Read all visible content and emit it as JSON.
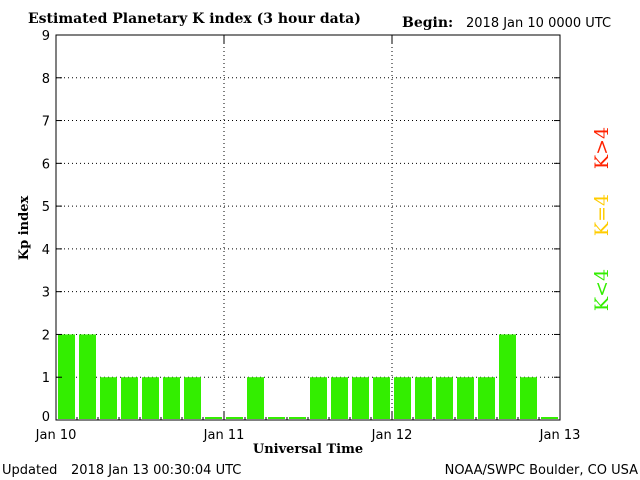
{
  "header": {
    "title": "Estimated Planetary K index (3 hour data)",
    "begin_label": "Begin:",
    "begin_value": "2018 Jan 10 0000 UTC"
  },
  "footer": {
    "updated_label": "Updated",
    "updated_value": "2018 Jan 13 00:30:04 UTC",
    "source": "NOAA/SWPC Boulder, CO USA"
  },
  "legend": {
    "low": {
      "text": "K<4",
      "color": "#33ee00"
    },
    "mid": {
      "text": "K=4",
      "color": "#ffcc00"
    },
    "high": {
      "text": "K>4",
      "color": "#ff2200"
    }
  },
  "chart_data": {
    "type": "bar",
    "title": "Estimated Planetary K index (3 hour data)",
    "xlabel": "Universal Time",
    "ylabel": "Kp index",
    "ylim": [
      0,
      9
    ],
    "yticks": [
      0,
      1,
      2,
      3,
      4,
      5,
      6,
      7,
      8,
      9
    ],
    "xlim": [
      "2018-01-10T00:00Z",
      "2018-01-13T00:00Z"
    ],
    "xtick_labels": [
      "Jan 10",
      "Jan 11",
      "Jan 12",
      "Jan 13"
    ],
    "grid": "dotted",
    "bar_color": "#33ee00",
    "categories": [
      "2018-01-10T00:00Z",
      "2018-01-10T03:00Z",
      "2018-01-10T06:00Z",
      "2018-01-10T09:00Z",
      "2018-01-10T12:00Z",
      "2018-01-10T15:00Z",
      "2018-01-10T18:00Z",
      "2018-01-10T21:00Z",
      "2018-01-11T00:00Z",
      "2018-01-11T03:00Z",
      "2018-01-11T06:00Z",
      "2018-01-11T09:00Z",
      "2018-01-11T12:00Z",
      "2018-01-11T15:00Z",
      "2018-01-11T18:00Z",
      "2018-01-11T21:00Z",
      "2018-01-12T00:00Z",
      "2018-01-12T03:00Z",
      "2018-01-12T06:00Z",
      "2018-01-12T09:00Z",
      "2018-01-12T12:00Z",
      "2018-01-12T15:00Z",
      "2018-01-12T18:00Z",
      "2018-01-12T21:00Z"
    ],
    "values": [
      2,
      2,
      1,
      1,
      1,
      1,
      1,
      0.07,
      0.07,
      1,
      0.07,
      0.07,
      1,
      1,
      1,
      1,
      1,
      1,
      1,
      1,
      1,
      2,
      1,
      0.07
    ]
  }
}
